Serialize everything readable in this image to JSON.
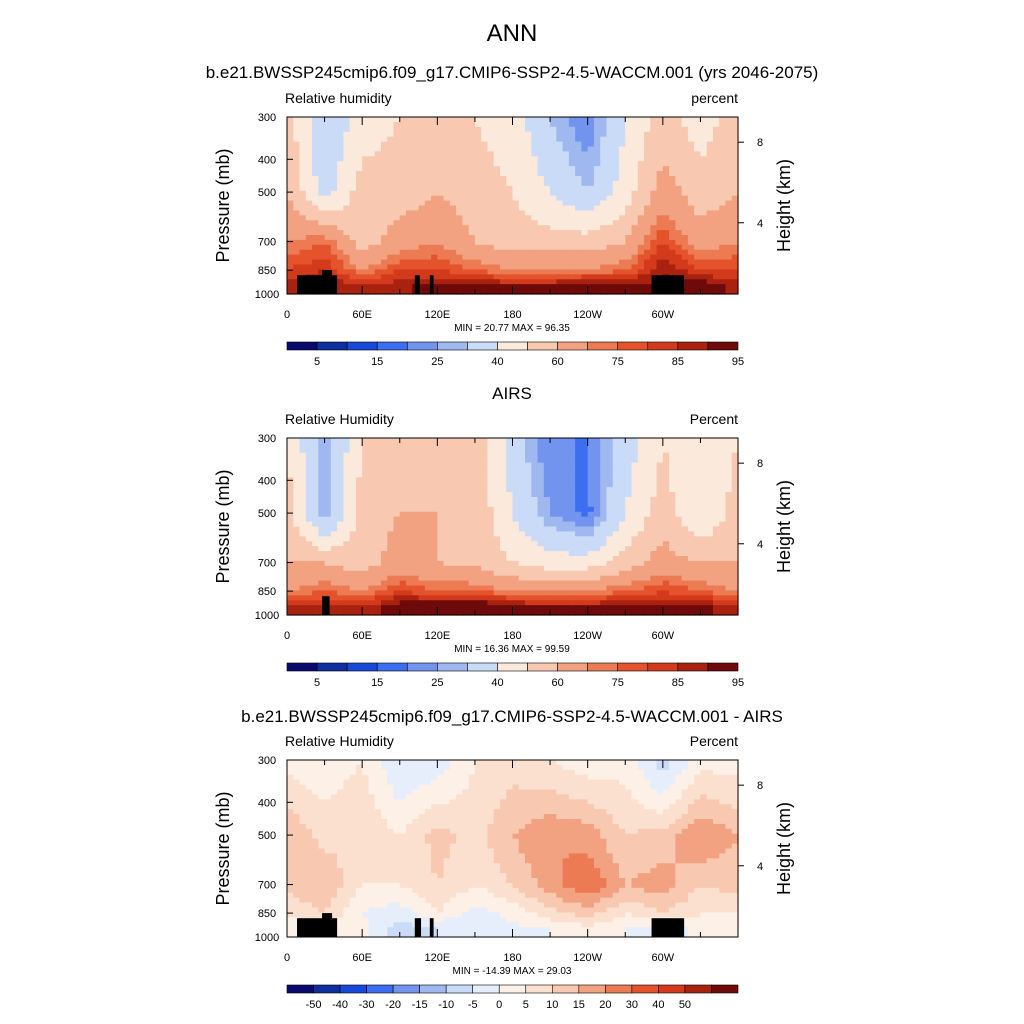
{
  "figure": {
    "title": "ANN",
    "axis_labels": {
      "left": "Pressure (mb)",
      "right": "Height (km)"
    },
    "pressure_ticks": [
      "300",
      "400",
      "500",
      "700",
      "850",
      "1000"
    ],
    "height_ticks": [
      "8",
      "4"
    ],
    "lon_ticks": [
      "0",
      "60E",
      "120E",
      "180",
      "120W",
      "60W"
    ]
  },
  "panels": [
    {
      "title": "b.e21.BWSSP245cmip6.f09_g17.CMIP6-SSP2-4.5-WACCM.001 (yrs 2046-2075)",
      "var_label": "Relative humidity",
      "units": "percent",
      "stats": "MIN =  20.77  MAX =  96.35",
      "colorbar_labels": [
        "5",
        "15",
        "25",
        "40",
        "60",
        "75",
        "85",
        "95"
      ]
    },
    {
      "title": "AIRS",
      "var_label": "Relative Humidity",
      "units": "Percent",
      "stats": "MIN =  16.36  MAX =  99.59",
      "colorbar_labels": [
        "5",
        "15",
        "25",
        "40",
        "60",
        "75",
        "85",
        "95"
      ]
    },
    {
      "title": "b.e21.BWSSP245cmip6.f09_g17.CMIP6-SSP2-4.5-WACCM.001 - AIRS",
      "var_label": "Relative Humidity",
      "units": "Percent",
      "stats": "MIN = -14.39  MAX =  29.03",
      "colorbar_labels": [
        "-50",
        "-40",
        "-30",
        "-20",
        "-15",
        "-10",
        "-5",
        "0",
        "5",
        "10",
        "15",
        "20",
        "30",
        "40",
        "50"
      ]
    }
  ],
  "colors": {
    "abs_scale": [
      "#0a0a6e",
      "#0d2fa0",
      "#1848d8",
      "#3c6ef0",
      "#7294ee",
      "#9fb8f0",
      "#c9dbf7",
      "#fbe9dc",
      "#f8c8b0",
      "#f2a281",
      "#ec7a52",
      "#e5532c",
      "#d33a1c",
      "#a9220f",
      "#6e0a0a"
    ],
    "diff_scale": [
      "#0a0a6e",
      "#0d2fa0",
      "#1848d8",
      "#3c6ef0",
      "#7294ee",
      "#9fb8f0",
      "#c9dbf7",
      "#e6eefb",
      "#fdf0e6",
      "#fbe0cf",
      "#f8c8b0",
      "#f2a281",
      "#ec7a52",
      "#e5532c",
      "#d33a1c",
      "#a9220f",
      "#6e0a0a"
    ],
    "topography": "#000000"
  },
  "chart_data": [
    {
      "type": "heatmap",
      "title": "b.e21.BWSSP245cmip6.f09_g17.CMIP6-SSP2-4.5-WACCM.001 (yrs 2046-2075)",
      "x_label": "",
      "y_label": "Pressure (mb)",
      "y2_label": "Height (km)",
      "x_range": [
        0,
        360
      ],
      "y_range": [
        1000,
        300
      ],
      "y_scale": "log-pressure",
      "levels": [
        5,
        10,
        15,
        20,
        25,
        30,
        40,
        50,
        60,
        70,
        75,
        80,
        85,
        90,
        95
      ],
      "min": 20.77,
      "max": 96.35,
      "sample_lon": [
        0,
        30,
        60,
        90,
        120,
        150,
        180,
        210,
        240,
        270,
        300,
        330,
        360
      ],
      "sample_pressure": [
        300,
        500,
        700,
        850,
        950
      ],
      "values": [
        [
          55,
          30,
          45,
          50,
          50,
          50,
          45,
          30,
          20,
          40,
          55,
          45,
          55
        ],
        [
          60,
          35,
          55,
          55,
          60,
          55,
          50,
          40,
          30,
          45,
          65,
          55,
          60
        ],
        [
          70,
          75,
          55,
          65,
          70,
          60,
          55,
          55,
          55,
          60,
          80,
          65,
          70
        ],
        [
          80,
          85,
          70,
          80,
          80,
          75,
          70,
          70,
          70,
          75,
          90,
          80,
          80
        ],
        [
          88,
          90,
          85,
          88,
          93,
          92,
          90,
          90,
          96,
          90,
          92,
          95,
          88
        ]
      ]
    },
    {
      "type": "heatmap",
      "title": "AIRS",
      "x_label": "",
      "y_label": "Pressure (mb)",
      "y2_label": "Height (km)",
      "x_range": [
        0,
        360
      ],
      "y_range": [
        1000,
        300
      ],
      "y_scale": "log-pressure",
      "levels": [
        5,
        10,
        15,
        20,
        25,
        30,
        40,
        50,
        60,
        70,
        75,
        80,
        85,
        90,
        95
      ],
      "min": 16.36,
      "max": 99.59,
      "sample_lon": [
        0,
        30,
        60,
        90,
        120,
        150,
        180,
        210,
        240,
        270,
        300,
        330,
        360
      ],
      "sample_pressure": [
        300,
        500,
        700,
        850,
        950
      ],
      "values": [
        [
          50,
          25,
          50,
          60,
          55,
          55,
          35,
          20,
          20,
          35,
          50,
          40,
          50
        ],
        [
          55,
          25,
          55,
          60,
          60,
          58,
          40,
          25,
          18,
          40,
          55,
          40,
          55
        ],
        [
          60,
          60,
          55,
          65,
          60,
          58,
          50,
          45,
          45,
          55,
          65,
          60,
          60
        ],
        [
          70,
          75,
          70,
          80,
          75,
          75,
          70,
          70,
          70,
          75,
          80,
          75,
          70
        ],
        [
          85,
          88,
          85,
          95,
          98,
          99,
          92,
          90,
          90,
          93,
          90,
          92,
          85
        ]
      ]
    },
    {
      "type": "heatmap",
      "title": "b.e21.BWSSP245cmip6.f09_g17.CMIP6-SSP2-4.5-WACCM.001 - AIRS",
      "x_label": "",
      "y_label": "Pressure (mb)",
      "y2_label": "Height (km)",
      "x_range": [
        0,
        360
      ],
      "y_range": [
        1000,
        300
      ],
      "y_scale": "log-pressure",
      "levels": [
        -50,
        -40,
        -30,
        -20,
        -15,
        -10,
        -5,
        0,
        5,
        10,
        15,
        20,
        30,
        40,
        50
      ],
      "min": -14.39,
      "max": 29.03,
      "sample_lon": [
        0,
        30,
        60,
        90,
        120,
        150,
        180,
        210,
        240,
        270,
        300,
        330,
        360
      ],
      "sample_pressure": [
        300,
        500,
        700,
        850,
        950
      ],
      "values": [
        [
          3,
          2,
          5,
          -5,
          -3,
          5,
          8,
          5,
          2,
          3,
          -8,
          3,
          3
        ],
        [
          15,
          8,
          10,
          5,
          12,
          8,
          15,
          20,
          18,
          10,
          12,
          20,
          15
        ],
        [
          12,
          15,
          5,
          5,
          10,
          5,
          10,
          18,
          25,
          15,
          18,
          10,
          12
        ],
        [
          5,
          10,
          0,
          -3,
          5,
          -2,
          2,
          8,
          12,
          5,
          10,
          5,
          5
        ],
        [
          2,
          2,
          2,
          -8,
          -5,
          -5,
          -2,
          0,
          3,
          0,
          -3,
          2,
          2
        ]
      ]
    }
  ]
}
